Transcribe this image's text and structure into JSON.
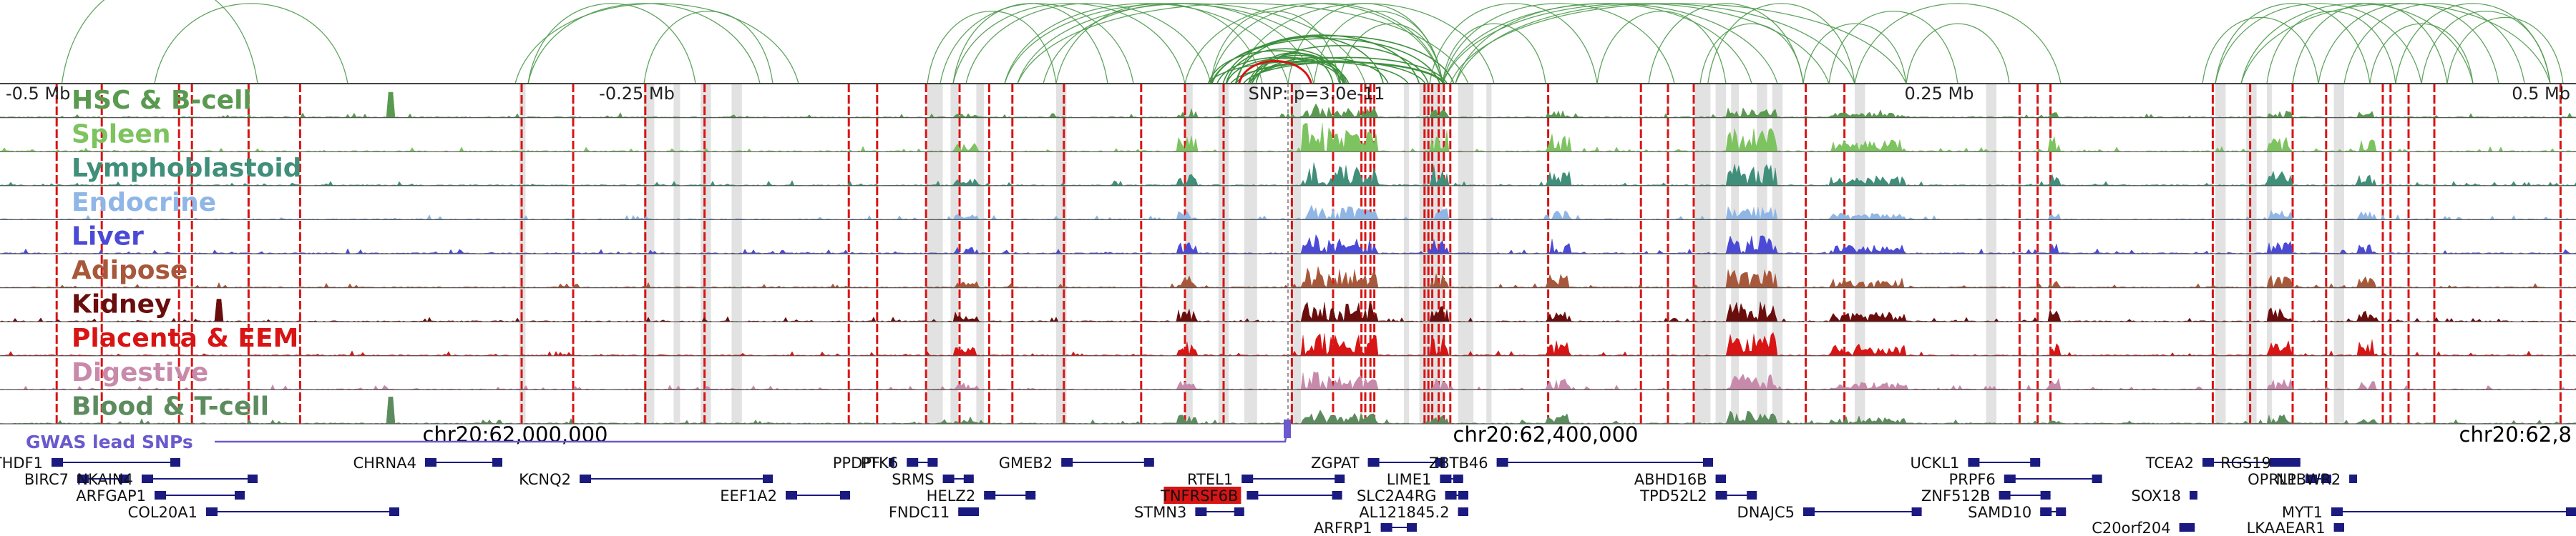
{
  "chart_data": {
    "type": "area",
    "ruler_labels": [
      "-0.5 Mb",
      "-0.25 Mb",
      "SNP: p=3.0e-11",
      "0.25 Mb",
      "0.5 Mb"
    ],
    "xlim_mb": [
      -0.5,
      0.5
    ],
    "tracks": [
      {
        "name": "HSC & B-cell",
        "color": "#5a9a50"
      },
      {
        "name": "Spleen",
        "color": "#7dc35f"
      },
      {
        "name": "Lymphoblastoid",
        "color": "#3f8f7a"
      },
      {
        "name": "Endocrine",
        "color": "#8fb6e6"
      },
      {
        "name": "Liver",
        "color": "#4a4ad6"
      },
      {
        "name": "Adipose",
        "color": "#a8583a"
      },
      {
        "name": "Kidney",
        "color": "#6a0d0d"
      },
      {
        "name": "Placenta & EEM",
        "color": "#d81414"
      },
      {
        "name": "Digestive",
        "color": "#c88aab"
      },
      {
        "name": "Blood & T-cell",
        "color": "#5c8c5e"
      }
    ],
    "chromosome_positions": [
      {
        "label": "chr20:62,000,000",
        "offset_mb": -0.3
      },
      {
        "label": "chr20:62,400,000",
        "offset_mb": 0.1
      },
      {
        "label": "chr20:62,8",
        "offset_mb": 0.5
      }
    ],
    "gwas_label": "GWAS lead SNPs",
    "gwas_color": "#6a5acd",
    "highlight_color": "#d81414",
    "gene_color": "#1a1a80",
    "genes": [
      {
        "name": "YTHDF1",
        "start": -0.48,
        "end": -0.43,
        "row": 0
      },
      {
        "name": "BIRC7",
        "start": -0.47,
        "end": -0.45,
        "row": 1
      },
      {
        "name": "NKAIN4",
        "start": -0.445,
        "end": -0.4,
        "row": 1
      },
      {
        "name": "ARFGAP1",
        "start": -0.44,
        "end": -0.405,
        "row": 2
      },
      {
        "name": "COL20A1",
        "start": -0.42,
        "end": -0.345,
        "row": 3
      },
      {
        "name": "CHRNA4",
        "start": -0.335,
        "end": -0.305,
        "row": 0
      },
      {
        "name": "KCNQ2",
        "start": -0.275,
        "end": -0.2,
        "row": 1
      },
      {
        "name": "EEF1A2",
        "start": -0.195,
        "end": -0.17,
        "row": 2
      },
      {
        "name": "PPDPF",
        "start": -0.155,
        "end": -0.153,
        "row": 0
      },
      {
        "name": "PTK6",
        "start": -0.148,
        "end": -0.136,
        "row": 0
      },
      {
        "name": "SRMS",
        "start": -0.134,
        "end": -0.122,
        "row": 1
      },
      {
        "name": "HELZ2",
        "start": -0.118,
        "end": -0.098,
        "row": 2
      },
      {
        "name": "FNDC11",
        "start": -0.128,
        "end": -0.12,
        "row": 3
      },
      {
        "name": "GMEB2",
        "start": -0.088,
        "end": -0.052,
        "row": 0
      },
      {
        "name": "RTEL1",
        "start": -0.018,
        "end": 0.022,
        "row": 1
      },
      {
        "name": "STMN3",
        "start": -0.036,
        "end": -0.017,
        "row": 3
      },
      {
        "name": "TNFRSF6B",
        "start": -0.016,
        "end": 0.021,
        "row": 2,
        "highlight": true
      },
      {
        "name": "ZGPAT",
        "start": 0.031,
        "end": 0.061,
        "row": 0
      },
      {
        "name": "LIME1",
        "start": 0.059,
        "end": 0.068,
        "row": 1
      },
      {
        "name": "SLC2A4RG",
        "start": 0.061,
        "end": 0.07,
        "row": 2
      },
      {
        "name": "AL121845.2",
        "start": 0.066,
        "end": 0.07,
        "row": 3
      },
      {
        "name": "ARFRP1",
        "start": 0.036,
        "end": 0.05,
        "row": 4
      },
      {
        "name": "ZBTB46",
        "start": 0.081,
        "end": 0.165,
        "row": 0
      },
      {
        "name": "ABHD16B",
        "start": 0.166,
        "end": 0.17,
        "row": 1
      },
      {
        "name": "TPD52L2",
        "start": 0.166,
        "end": 0.182,
        "row": 2
      },
      {
        "name": "DNAJC5",
        "start": 0.2,
        "end": 0.246,
        "row": 3
      },
      {
        "name": "UCKL1",
        "start": 0.264,
        "end": 0.292,
        "row": 0
      },
      {
        "name": "PRPF6",
        "start": 0.278,
        "end": 0.316,
        "row": 1
      },
      {
        "name": "ZNF512B",
        "start": 0.276,
        "end": 0.296,
        "row": 2
      },
      {
        "name": "SAMD10",
        "start": 0.292,
        "end": 0.302,
        "row": 3
      },
      {
        "name": "C20orf204",
        "start": 0.346,
        "end": 0.352,
        "row": 4
      },
      {
        "name": "TCEA2",
        "start": 0.355,
        "end": 0.385,
        "row": 0
      },
      {
        "name": "RGS19",
        "start": 0.385,
        "end": 0.393,
        "row": 0
      },
      {
        "name": "OPRL1",
        "start": 0.395,
        "end": 0.405,
        "row": 1
      },
      {
        "name": "NPBWR2",
        "start": 0.412,
        "end": 0.415,
        "row": 1
      },
      {
        "name": "SOX18",
        "start": 0.35,
        "end": 0.353,
        "row": 2
      },
      {
        "name": "MYT1",
        "start": 0.405,
        "end": 0.5,
        "row": 3
      },
      {
        "name": "LKAAEAR1",
        "start": 0.406,
        "end": 0.41,
        "row": 4
      }
    ]
  }
}
